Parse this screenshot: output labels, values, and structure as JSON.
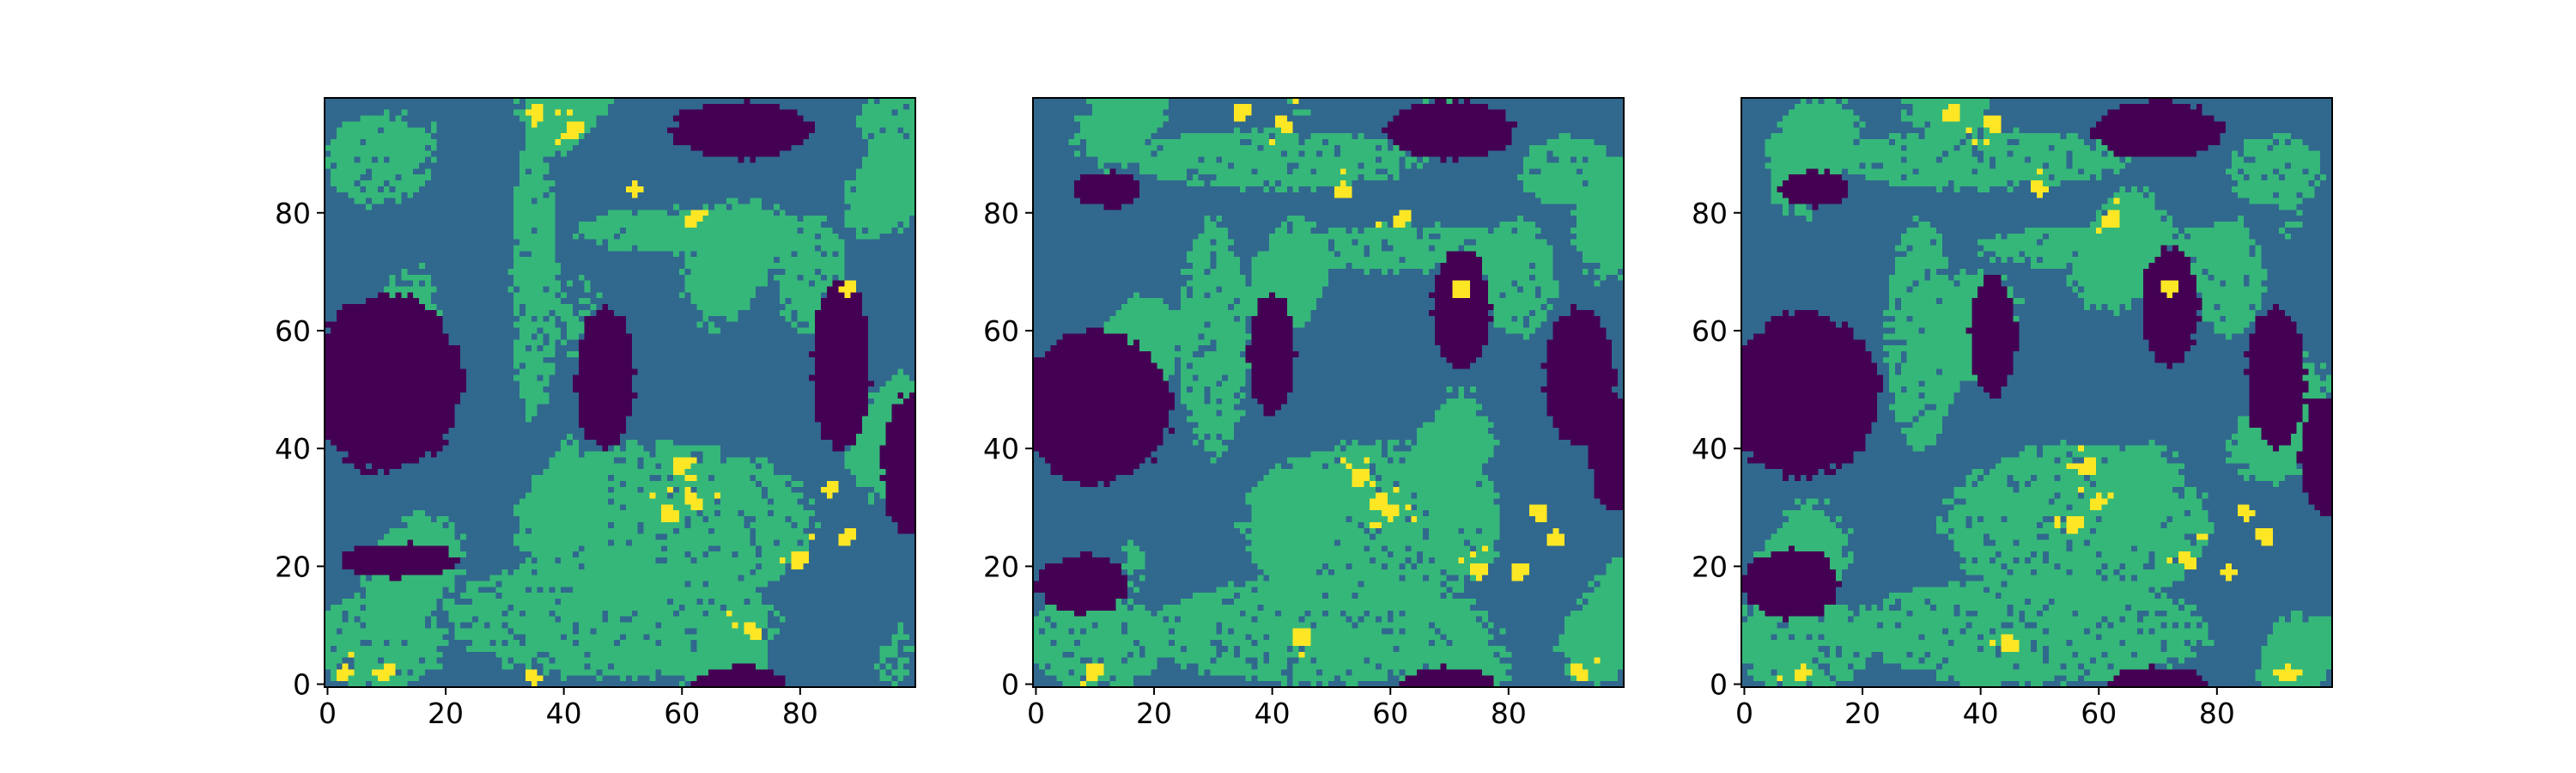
{
  "chart_data": {
    "type": "heatmap",
    "grid_size": [
      100,
      100
    ],
    "colormap": "viridis",
    "palette": [
      "#440154",
      "#31688e",
      "#35b779",
      "#fde725"
    ],
    "levels": [
      0,
      1,
      2,
      3
    ],
    "x_ticks": [
      "0",
      "20",
      "40",
      "60",
      "80"
    ],
    "y_ticks": [
      "0",
      "20",
      "40",
      "60",
      "80"
    ],
    "x_tick_values": [
      0,
      20,
      40,
      60,
      80
    ],
    "y_tick_values": [
      0,
      20,
      40,
      60,
      80
    ],
    "xlim": [
      -0.5,
      99.5
    ],
    "ylim": [
      99.5,
      -0.5
    ],
    "panels": [
      {
        "seed": 11,
        "dark_blobs": [
          [
            70,
            5,
            12,
            5
          ],
          [
            10,
            48,
            13,
            15
          ],
          [
            47,
            47,
            5,
            12
          ],
          [
            87,
            45,
            5,
            15
          ],
          [
            98,
            62,
            4,
            12
          ],
          [
            12,
            78,
            10,
            3
          ],
          [
            70,
            99,
            8,
            3
          ]
        ],
        "green_regions": [
          [
            8,
            10,
            8,
            8
          ],
          [
            62,
            22,
            20,
            4
          ],
          [
            35,
            30,
            4,
            25
          ],
          [
            57,
            72,
            25,
            14
          ],
          [
            48,
            88,
            28,
            10
          ],
          [
            8,
            92,
            12,
            8
          ],
          [
            82,
            30,
            6,
            10
          ],
          [
            96,
            4,
            6,
            6
          ]
        ],
        "yellow_spots": [
          [
            62,
            20
          ],
          [
            52,
            15
          ],
          [
            35,
            2
          ],
          [
            42,
            5
          ],
          [
            88,
            32
          ],
          [
            60,
            62
          ],
          [
            62,
            68
          ],
          [
            85,
            66
          ],
          [
            88,
            74
          ],
          [
            80,
            78
          ],
          [
            72,
            90
          ],
          [
            10,
            97
          ],
          [
            3,
            97
          ],
          [
            35,
            98
          ],
          [
            58,
            70
          ]
        ]
      },
      {
        "seed": 23,
        "dark_blobs": [
          [
            70,
            5,
            11,
            5
          ],
          [
            10,
            52,
            13,
            13
          ],
          [
            40,
            43,
            4,
            10
          ],
          [
            72,
            35,
            5,
            10
          ],
          [
            92,
            47,
            6,
            12
          ],
          [
            98,
            60,
            4,
            10
          ],
          [
            8,
            82,
            8,
            5
          ],
          [
            70,
            99,
            8,
            3
          ],
          [
            12,
            15,
            6,
            3
          ]
        ],
        "green_regions": [
          [
            40,
            10,
            25,
            5
          ],
          [
            62,
            25,
            22,
            4
          ],
          [
            30,
            40,
            6,
            20
          ],
          [
            57,
            72,
            22,
            14
          ],
          [
            48,
            90,
            30,
            9
          ],
          [
            10,
            92,
            12,
            8
          ],
          [
            82,
            30,
            6,
            10
          ],
          [
            90,
            12,
            8,
            6
          ]
        ],
        "yellow_spots": [
          [
            62,
            20
          ],
          [
            52,
            15
          ],
          [
            42,
            4
          ],
          [
            35,
            2
          ],
          [
            58,
            68
          ],
          [
            60,
            70
          ],
          [
            55,
            64
          ],
          [
            75,
            80
          ],
          [
            85,
            70
          ],
          [
            88,
            74
          ],
          [
            82,
            80
          ],
          [
            45,
            91
          ],
          [
            10,
            97
          ],
          [
            92,
            97
          ],
          [
            72,
            32
          ]
        ]
      },
      {
        "seed": 37,
        "dark_blobs": [
          [
            70,
            5,
            11,
            5
          ],
          [
            10,
            50,
            13,
            14
          ],
          [
            42,
            40,
            4,
            10
          ],
          [
            72,
            35,
            5,
            10
          ],
          [
            90,
            47,
            5,
            12
          ],
          [
            98,
            60,
            4,
            10
          ],
          [
            8,
            82,
            8,
            6
          ],
          [
            70,
            99,
            8,
            3
          ],
          [
            12,
            15,
            6,
            3
          ]
        ],
        "green_regions": [
          [
            40,
            10,
            25,
            5
          ],
          [
            62,
            25,
            22,
            4
          ],
          [
            30,
            40,
            6,
            20
          ],
          [
            57,
            72,
            22,
            14
          ],
          [
            48,
            90,
            30,
            9
          ],
          [
            10,
            92,
            12,
            8
          ],
          [
            82,
            30,
            6,
            10
          ],
          [
            90,
            12,
            8,
            6
          ]
        ],
        "yellow_spots": [
          [
            62,
            20
          ],
          [
            50,
            15
          ],
          [
            42,
            4
          ],
          [
            35,
            2
          ],
          [
            60,
            68
          ],
          [
            58,
            62
          ],
          [
            56,
            72
          ],
          [
            75,
            78
          ],
          [
            85,
            70
          ],
          [
            88,
            74
          ],
          [
            82,
            80
          ],
          [
            45,
            92
          ],
          [
            10,
            97
          ],
          [
            92,
            97
          ],
          [
            72,
            32
          ]
        ]
      }
    ]
  }
}
